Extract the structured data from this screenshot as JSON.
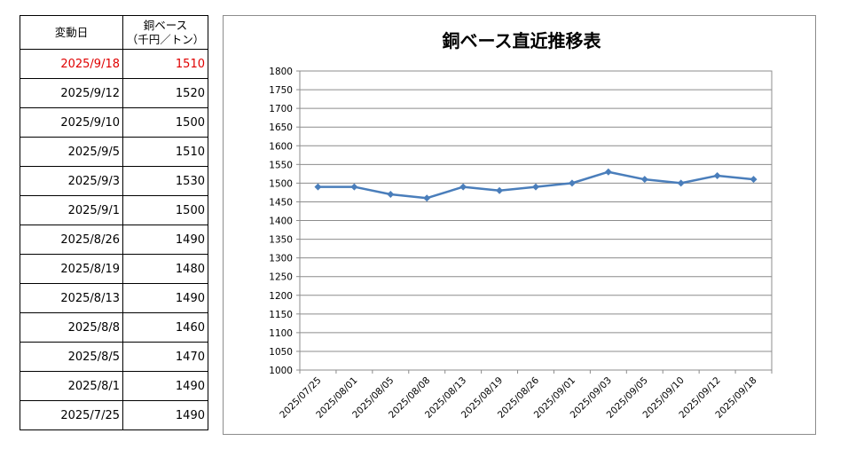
{
  "table": {
    "header_date": "変動日",
    "header_price_line1": "銅ベース",
    "header_price_line2": "（千円／トン）",
    "rows": [
      {
        "date": "2025/9/18",
        "price": "1510"
      },
      {
        "date": "2025/9/12",
        "price": "1520"
      },
      {
        "date": "2025/9/10",
        "price": "1500"
      },
      {
        "date": "2025/9/5",
        "price": "1510"
      },
      {
        "date": "2025/9/3",
        "price": "1530"
      },
      {
        "date": "2025/9/1",
        "price": "1500"
      },
      {
        "date": "2025/8/26",
        "price": "1490"
      },
      {
        "date": "2025/8/19",
        "price": "1480"
      },
      {
        "date": "2025/8/13",
        "price": "1490"
      },
      {
        "date": "2025/8/8",
        "price": "1460"
      },
      {
        "date": "2025/8/5",
        "price": "1470"
      },
      {
        "date": "2025/8/1",
        "price": "1490"
      },
      {
        "date": "2025/7/25",
        "price": "1490"
      }
    ],
    "latest_color": "#e00000"
  },
  "chart_data": {
    "type": "line",
    "title": "銅ベース直近推移表",
    "xlabel": "",
    "ylabel": "",
    "categories": [
      "2025/07/25",
      "2025/08/01",
      "2025/08/05",
      "2025/08/08",
      "2025/08/13",
      "2025/08/19",
      "2025/08/26",
      "2025/09/01",
      "2025/09/03",
      "2025/09/05",
      "2025/09/10",
      "2025/09/12",
      "2025/09/18"
    ],
    "series": [
      {
        "values": [
          1490,
          1490,
          1470,
          1460,
          1490,
          1480,
          1490,
          1500,
          1530,
          1510,
          1500,
          1520,
          1510
        ]
      }
    ],
    "ylim": [
      1000,
      1800
    ],
    "ystep": 50,
    "grid": true,
    "legend": "none",
    "line_color": "#4a7ebb"
  }
}
